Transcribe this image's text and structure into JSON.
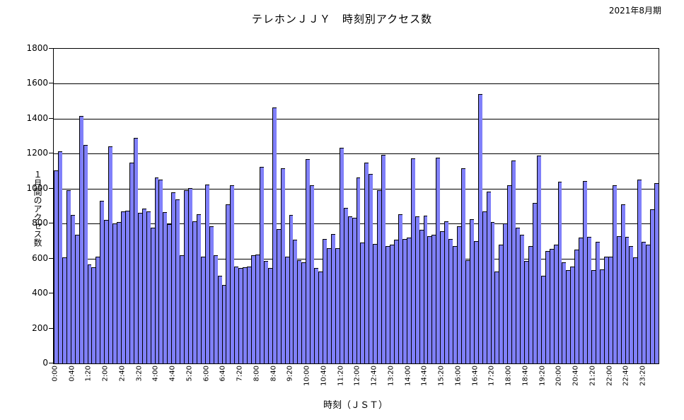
{
  "header": {
    "period_label": "2021年8月期"
  },
  "chart_data": {
    "type": "bar",
    "title": "テレホンＪＪＹ　時刻別アクセス数",
    "ylabel": "１月間のアクセス数",
    "xlabel": "時刻（ＪＳＴ）",
    "ylim": [
      0,
      1800
    ],
    "ytick_step": 200,
    "xtick_every": 4,
    "grid": "on",
    "legend": "none",
    "bar_color": "#8080FA",
    "bar_border_color": "#000000",
    "categories": [
      "0:00",
      "0:10",
      "0:20",
      "0:30",
      "0:40",
      "0:50",
      "1:00",
      "1:10",
      "1:20",
      "1:30",
      "1:40",
      "1:50",
      "2:00",
      "2:10",
      "2:20",
      "2:30",
      "2:40",
      "2:50",
      "3:00",
      "3:10",
      "3:20",
      "3:30",
      "3:40",
      "3:50",
      "4:00",
      "4:10",
      "4:20",
      "4:30",
      "4:40",
      "4:50",
      "5:00",
      "5:10",
      "5:20",
      "5:30",
      "5:40",
      "5:50",
      "6:00",
      "6:10",
      "6:20",
      "6:30",
      "6:40",
      "6:50",
      "7:00",
      "7:10",
      "7:20",
      "7:30",
      "7:40",
      "7:50",
      "8:00",
      "8:10",
      "8:20",
      "8:30",
      "8:40",
      "8:50",
      "9:00",
      "9:10",
      "9:20",
      "9:30",
      "9:40",
      "9:50",
      "10:00",
      "10:10",
      "10:20",
      "10:30",
      "10:40",
      "10:50",
      "11:00",
      "11:10",
      "11:20",
      "11:30",
      "11:40",
      "11:50",
      "12:00",
      "12:10",
      "12:20",
      "12:30",
      "12:40",
      "12:50",
      "13:00",
      "13:10",
      "13:20",
      "13:30",
      "13:40",
      "13:50",
      "14:00",
      "14:10",
      "14:20",
      "14:30",
      "14:40",
      "14:50",
      "15:00",
      "15:10",
      "15:20",
      "15:30",
      "15:40",
      "15:50",
      "16:00",
      "16:10",
      "16:20",
      "16:30",
      "16:40",
      "16:50",
      "17:00",
      "17:10",
      "17:20",
      "17:30",
      "17:40",
      "17:50",
      "18:00",
      "18:10",
      "18:20",
      "18:30",
      "18:40",
      "18:50",
      "19:00",
      "19:10",
      "19:20",
      "19:30",
      "19:40",
      "19:50",
      "20:00",
      "20:10",
      "20:20",
      "20:30",
      "20:40",
      "20:50",
      "21:00",
      "21:10",
      "21:20",
      "21:30",
      "21:40",
      "21:50",
      "22:00",
      "22:10",
      "22:20",
      "22:30",
      "22:40",
      "22:50",
      "23:00",
      "23:10",
      "23:20",
      "23:30",
      "23:40",
      "23:50"
    ],
    "values": [
      1105,
      1215,
      605,
      990,
      850,
      735,
      1415,
      1250,
      565,
      550,
      610,
      930,
      820,
      1240,
      800,
      810,
      870,
      875,
      1150,
      1290,
      860,
      885,
      870,
      775,
      1065,
      1050,
      865,
      795,
      980,
      940,
      620,
      990,
      1005,
      815,
      855,
      610,
      1025,
      785,
      620,
      500,
      450,
      910,
      1020,
      555,
      545,
      550,
      555,
      620,
      625,
      1125,
      585,
      545,
      1465,
      770,
      1115,
      610,
      848,
      707,
      592,
      578,
      1170,
      1020,
      545,
      527,
      712,
      660,
      742,
      658,
      1235,
      888,
      843,
      834,
      1065,
      690,
      1150,
      1085,
      685,
      990,
      1195,
      670,
      678,
      707,
      852,
      712,
      720,
      1175,
      840,
      765,
      845,
      730,
      735,
      1178,
      755,
      815,
      712,
      670,
      785,
      1115,
      590,
      825,
      700,
      1540,
      870,
      985,
      810,
      525,
      680,
      800,
      1020,
      1160,
      775,
      735,
      585,
      670,
      920,
      1190,
      500,
      645,
      655,
      680,
      1040,
      580,
      535,
      555,
      650,
      720,
      1045,
      725,
      535,
      695,
      540,
      610,
      610,
      1020,
      730,
      910,
      725,
      670,
      608,
      1050,
      695,
      680,
      880,
      1030
    ]
  }
}
